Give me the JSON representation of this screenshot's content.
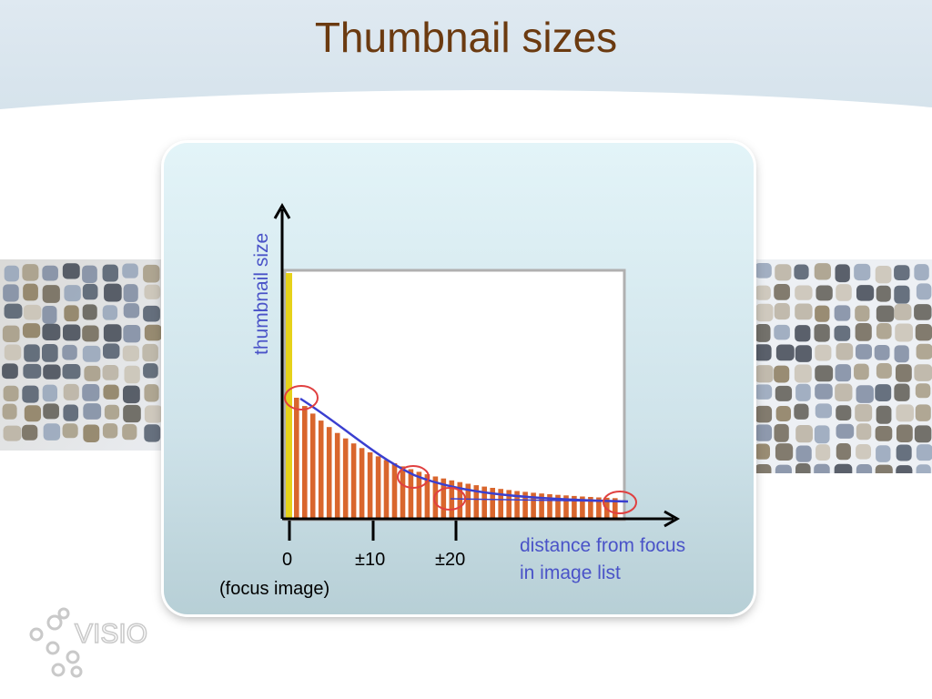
{
  "slide": {
    "title": "Thumbnail sizes"
  },
  "diagram": {
    "y_axis_label": "thumbnail size",
    "x_axis_label_line1": "distance from focus",
    "x_axis_label_line2": "in image list",
    "ticks": [
      {
        "label": "0"
      },
      {
        "label": "±10"
      },
      {
        "label": "±20"
      }
    ],
    "focus_note": "(focus image)",
    "bar_color": "#d9662d",
    "curve_color": "#3a3fd0",
    "highlight_color": "#e04040",
    "focus_bar_color": "#e6d21a"
  },
  "logo": {
    "text": "VISIO"
  }
}
